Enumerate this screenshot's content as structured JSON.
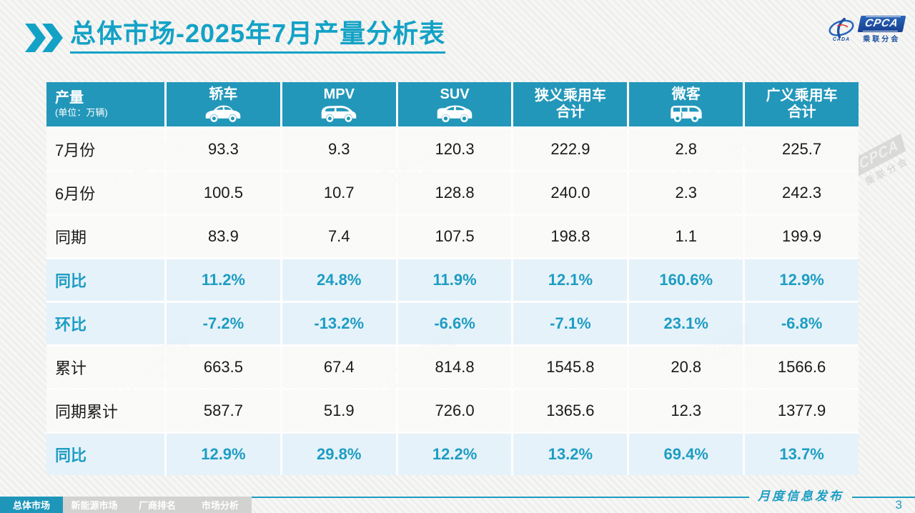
{
  "slide": {
    "title": "总体市场-2025年7月产量分析表",
    "page_number": "3",
    "footer_release_label": "月度信息发布",
    "accent_color": "#13a2c6",
    "header_bg_color": "#2397ba",
    "highlight_text_color": "#1d9dc3",
    "logo": {
      "brand": "CPCA",
      "sub_brand": "乘联分会",
      "small_text": "CADA"
    },
    "watermark": {
      "brand": "CPCA",
      "sub_brand": "乘联分会"
    }
  },
  "table": {
    "header": {
      "col0_title": "产量",
      "col0_sub": "(单位：万辆)",
      "columns": [
        {
          "label": "轿车",
          "label2": "",
          "icon": "sedan-icon"
        },
        {
          "label": "MPV",
          "label2": "",
          "icon": "mpv-icon"
        },
        {
          "label": "SUV",
          "label2": "",
          "icon": "suv-icon"
        },
        {
          "label": "狭义乘用车",
          "label2": "合计",
          "icon": ""
        },
        {
          "label": "微客",
          "label2": "",
          "icon": "microvan-icon"
        },
        {
          "label": "广义乘用车",
          "label2": "合计",
          "icon": ""
        }
      ]
    },
    "rows": [
      {
        "label": "7月份",
        "type": "normal",
        "values": [
          "93.3",
          "9.3",
          "120.3",
          "222.9",
          "2.8",
          "225.7"
        ]
      },
      {
        "label": "6月份",
        "type": "normal",
        "values": [
          "100.5",
          "10.7",
          "128.8",
          "240.0",
          "2.3",
          "242.3"
        ]
      },
      {
        "label": "同期",
        "type": "normal",
        "values": [
          "83.9",
          "7.4",
          "107.5",
          "198.8",
          "1.1",
          "199.9"
        ]
      },
      {
        "label": "同比",
        "type": "highlight",
        "values": [
          "11.2%",
          "24.8%",
          "11.9%",
          "12.1%",
          "160.6%",
          "12.9%"
        ]
      },
      {
        "label": "环比",
        "type": "highlight",
        "values": [
          "-7.2%",
          "-13.2%",
          "-6.6%",
          "-7.1%",
          "23.1%",
          "-6.8%"
        ]
      },
      {
        "label": "累计",
        "type": "normal",
        "values": [
          "663.5",
          "67.4",
          "814.8",
          "1545.8",
          "20.8",
          "1566.6"
        ]
      },
      {
        "label": "同期累计",
        "type": "normal",
        "values": [
          "587.7",
          "51.9",
          "726.0",
          "1365.6",
          "12.3",
          "1377.9"
        ]
      },
      {
        "label": "同比",
        "type": "highlight",
        "values": [
          "12.9%",
          "29.8%",
          "12.2%",
          "13.2%",
          "69.4%",
          "13.7%"
        ]
      }
    ]
  },
  "footer": {
    "tabs": [
      {
        "label": "总体市场",
        "active": true
      },
      {
        "label": "新能源市场",
        "active": false
      },
      {
        "label": "厂商排名",
        "active": false
      },
      {
        "label": "市场分析",
        "active": false
      }
    ]
  }
}
